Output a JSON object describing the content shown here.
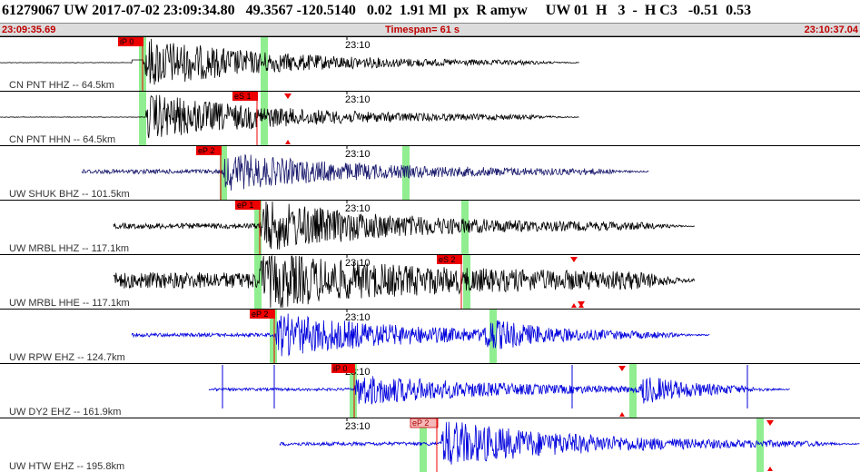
{
  "header": {
    "event_line": "61279067 UW 2017-07-02 23:09:34.80   49.3567 -120.5140   0.02  1.91 Ml  px  R amyw     UW 01  H   3  -  H C3   -0.51  0.53",
    "start_time": "23:09:35.69",
    "timespan": "Timespan=  61 s",
    "end_time": "23:10:37.04"
  },
  "time_tick": "23:10",
  "colors": {
    "trace_black": "#000000",
    "trace_navy": "#1a1a6e",
    "trace_blue": "#0000dd",
    "pick_red": "#ee0000",
    "pick_pink": "#f4b8b8",
    "window_green": "#90ee90",
    "arrival_red": "#ee0000",
    "label_gray": "#333333",
    "divider": "#000000"
  },
  "traces": [
    {
      "label": "CN PNT HHZ -- 64.5km",
      "color": "trace_black",
      "pick": "iP 0",
      "pick_style": "red"
    },
    {
      "label": "CN PNT HHN -- 64.5km",
      "color": "trace_black",
      "pick": "eS 1",
      "pick_style": "red"
    },
    {
      "label": "UW SHUK BHZ -- 101.5km",
      "color": "trace_navy",
      "pick": "eP 2",
      "pick_style": "red"
    },
    {
      "label": "UW MRBL HHZ -- 117.1km",
      "color": "trace_black",
      "pick": "eP 1",
      "pick_style": "red"
    },
    {
      "label": "UW MRBL HHE -- 117.1km",
      "color": "trace_black",
      "pick": "eS 2",
      "pick_style": "red"
    },
    {
      "label": "UW RPW EHZ -- 124.7km",
      "color": "trace_blue",
      "pick": "eP 2",
      "pick_style": "red"
    },
    {
      "label": "UW DY2 EHZ -- 161.9km",
      "color": "trace_blue",
      "pick": "iP 0",
      "pick_style": "red"
    },
    {
      "label": "UW HTW EHZ -- 195.8km",
      "color": "trace_blue",
      "pick": "eP 2",
      "pick_style": "pink"
    }
  ]
}
